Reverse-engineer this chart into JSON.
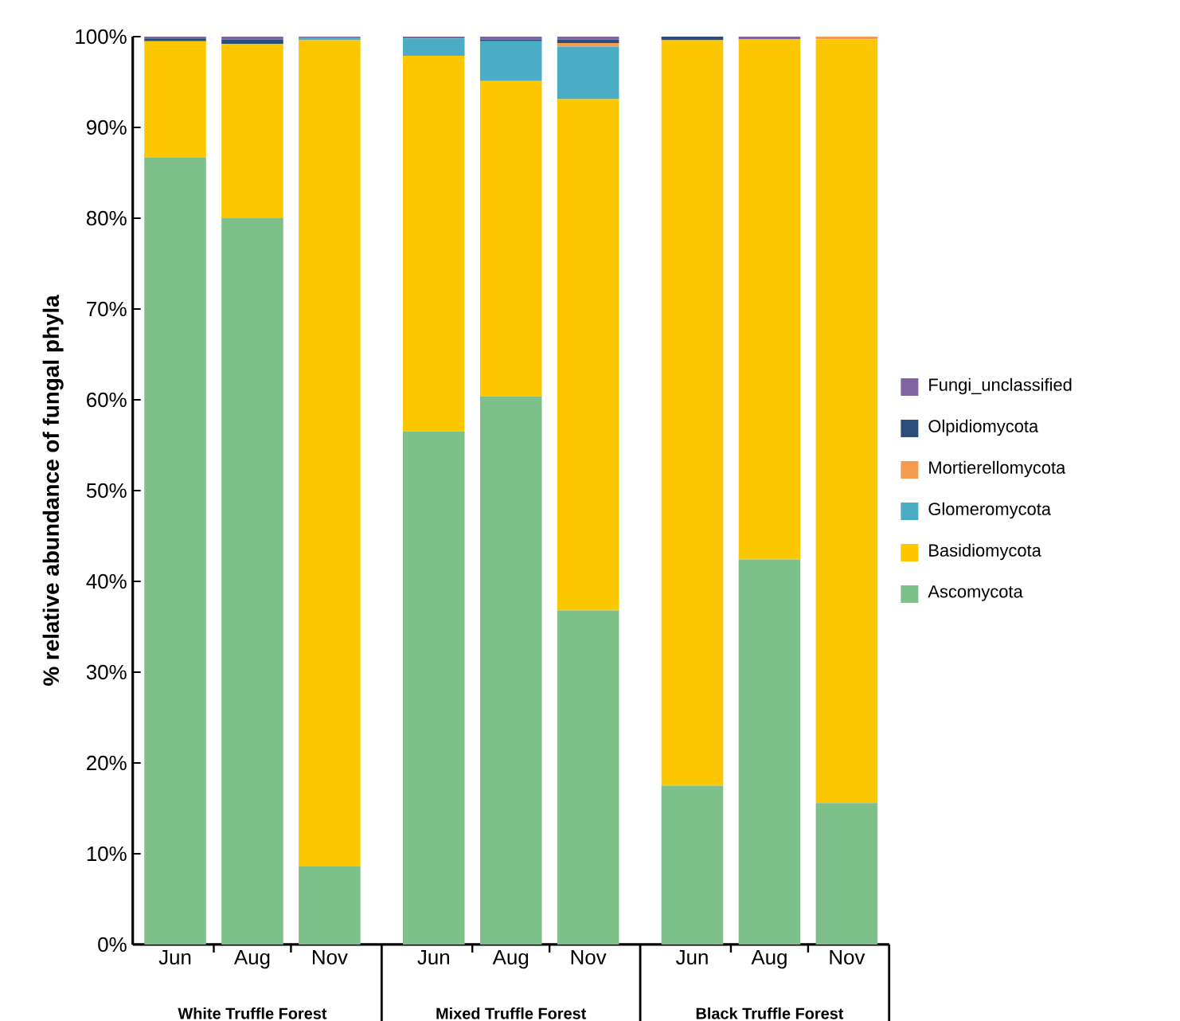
{
  "chart_data": {
    "type": "bar",
    "stacked": true,
    "ylabel": "% relative abundance of fungal phyla",
    "categories": [
      "Jun",
      "Aug",
      "Nov",
      "Jun",
      "Aug",
      "Nov",
      "Jun",
      "Aug",
      "Nov"
    ],
    "annotations": [
      "White Truffle Forest",
      "Mixed Truffle Forest",
      "Black Truffle Forest"
    ],
    "series": [
      {
        "name": "Ascomycota",
        "color": "#7dc08a",
        "values": [
          86.7,
          80.0,
          8.6,
          56.5,
          60.4,
          36.8,
          17.5,
          42.4,
          15.6
        ]
      },
      {
        "name": "Basidiomycota",
        "color": "#fdc700",
        "values": [
          12.8,
          19.2,
          91.0,
          41.4,
          34.7,
          56.3,
          82.1,
          57.3,
          84.1
        ]
      },
      {
        "name": "Glomeromycota",
        "color": "#4bacc6",
        "values": [
          0,
          0,
          0.3,
          1.9,
          4.4,
          5.8,
          0,
          0,
          0
        ]
      },
      {
        "name": "Mortierellomycota",
        "color": "#f59b4f",
        "values": [
          0,
          0,
          0,
          0,
          0,
          0.4,
          0,
          0,
          0.3
        ]
      },
      {
        "name": "Olpidiomycota",
        "color": "#2a4d7a",
        "values": [
          0.3,
          0.5,
          0,
          0,
          0.2,
          0.4,
          0.4,
          0,
          0
        ]
      },
      {
        "name": "Fungi_unclassified",
        "color": "#8064a2",
        "values": [
          0.2,
          0.3,
          0.1,
          0.2,
          0.3,
          0.3,
          0,
          0.3,
          0
        ]
      }
    ],
    "ylim": [
      0,
      100
    ],
    "yticks": [
      {
        "value": 0,
        "label": "0%"
      },
      {
        "value": 10,
        "label": "10%"
      },
      {
        "value": 20,
        "label": "20%"
      },
      {
        "value": 30,
        "label": "30%"
      },
      {
        "value": 40,
        "label": "40%"
      },
      {
        "value": 50,
        "label": "50%"
      },
      {
        "value": 60,
        "label": "60%"
      },
      {
        "value": 70,
        "label": "70%"
      },
      {
        "value": 80,
        "label": "80%"
      },
      {
        "value": 90,
        "label": "90%"
      },
      {
        "value": 100,
        "label": "100%"
      }
    ],
    "grid": false,
    "legend": "right"
  }
}
